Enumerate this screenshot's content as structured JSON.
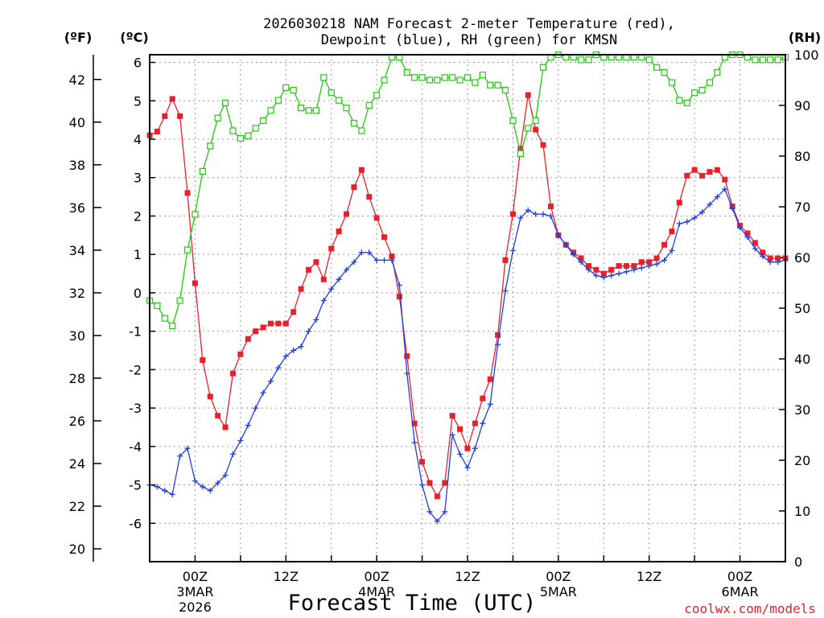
{
  "chart_data": {
    "type": "line",
    "title_line1": "2026030218 NAM Forecast 2-meter Temperature (red),",
    "title_line2": "Dewpoint (blue), RH (green) for KMSN",
    "xlabel": "Forecast Time (UTC)",
    "credit": "coolwx.com/models",
    "unit_labels": {
      "fahrenheit": "(ºF)",
      "celsius": "(ºC)",
      "rh": "(RH)"
    },
    "fahrenheit_axis": {
      "ticks": [
        "20",
        "22",
        "24",
        "26",
        "28",
        "30",
        "32",
        "34",
        "36",
        "38",
        "40",
        "42"
      ]
    },
    "celsius_axis": {
      "range": [
        -7,
        6.2
      ],
      "ticks": [
        "-6",
        "-5",
        "-4",
        "-3",
        "-2",
        "-1",
        "0",
        "1",
        "2",
        "3",
        "4",
        "5",
        "6"
      ]
    },
    "rh_axis": {
      "range": [
        0,
        100
      ],
      "ticks": [
        "0",
        "10",
        "20",
        "30",
        "40",
        "50",
        "60",
        "70",
        "80",
        "90",
        "100"
      ]
    },
    "time_axis": {
      "start_hour": -6,
      "end_hour": 78,
      "unit": "hours from 00Z 3MAR",
      "ticks": [
        {
          "hour": 0,
          "label": "00Z",
          "sub1": "3MAR",
          "sub2": "2026"
        },
        {
          "hour": 12,
          "label": "12Z",
          "sub1": "",
          "sub2": ""
        },
        {
          "hour": 24,
          "label": "00Z",
          "sub1": "4MAR",
          "sub2": ""
        },
        {
          "hour": 36,
          "label": "12Z",
          "sub1": "",
          "sub2": ""
        },
        {
          "hour": 48,
          "label": "00Z",
          "sub1": "5MAR",
          "sub2": ""
        },
        {
          "hour": 60,
          "label": "12Z",
          "sub1": "",
          "sub2": ""
        },
        {
          "hour": 72,
          "label": "00Z",
          "sub1": "6MAR",
          "sub2": ""
        }
      ]
    },
    "series": [
      {
        "name": "Temperature (°C)",
        "color": "#e8202a",
        "axis": "celsius",
        "marker": "square",
        "points": [
          [
            -6,
            4.1
          ],
          [
            -5,
            4.2
          ],
          [
            -4,
            4.6
          ],
          [
            -3,
            5.05
          ],
          [
            -2,
            4.6
          ],
          [
            -1,
            2.6
          ],
          [
            0,
            0.25
          ],
          [
            1,
            -1.75
          ],
          [
            2,
            -2.7
          ],
          [
            3,
            -3.2
          ],
          [
            4,
            -3.5
          ],
          [
            5,
            -2.1
          ],
          [
            6,
            -1.6
          ],
          [
            7,
            -1.2
          ],
          [
            8,
            -1.0
          ],
          [
            9,
            -0.9
          ],
          [
            10,
            -0.8
          ],
          [
            11,
            -0.8
          ],
          [
            12,
            -0.8
          ],
          [
            13,
            -0.5
          ],
          [
            14,
            0.1
          ],
          [
            15,
            0.6
          ],
          [
            16,
            0.8
          ],
          [
            17,
            0.35
          ],
          [
            18,
            1.15
          ],
          [
            19,
            1.6
          ],
          [
            20,
            2.05
          ],
          [
            21,
            2.75
          ],
          [
            22,
            3.2
          ],
          [
            23,
            2.5
          ],
          [
            24,
            1.95
          ],
          [
            25,
            1.45
          ],
          [
            26,
            0.95
          ],
          [
            27,
            -0.1
          ],
          [
            28,
            -1.65
          ],
          [
            29,
            -3.4
          ],
          [
            30,
            -4.4
          ],
          [
            31,
            -4.95
          ],
          [
            32,
            -5.3
          ],
          [
            33,
            -4.95
          ],
          [
            34,
            -3.2
          ],
          [
            35,
            -3.55
          ],
          [
            36,
            -4.05
          ],
          [
            37,
            -3.4
          ],
          [
            38,
            -2.75
          ],
          [
            39,
            -2.25
          ],
          [
            40,
            -1.1
          ],
          [
            41,
            0.85
          ],
          [
            42,
            2.05
          ],
          [
            43,
            3.75
          ],
          [
            44,
            5.15
          ],
          [
            45,
            4.25
          ],
          [
            46,
            3.85
          ],
          [
            47,
            2.25
          ],
          [
            48,
            1.5
          ],
          [
            49,
            1.25
          ],
          [
            50,
            1.05
          ],
          [
            51,
            0.9
          ],
          [
            52,
            0.7
          ],
          [
            53,
            0.6
          ],
          [
            54,
            0.5
          ],
          [
            55,
            0.6
          ],
          [
            56,
            0.7
          ],
          [
            57,
            0.7
          ],
          [
            58,
            0.7
          ],
          [
            59,
            0.8
          ],
          [
            60,
            0.8
          ],
          [
            61,
            0.9
          ],
          [
            62,
            1.25
          ],
          [
            63,
            1.6
          ],
          [
            64,
            2.35
          ],
          [
            65,
            3.05
          ],
          [
            66,
            3.2
          ],
          [
            67,
            3.05
          ],
          [
            68,
            3.15
          ],
          [
            69,
            3.2
          ],
          [
            70,
            2.95
          ],
          [
            71,
            2.25
          ],
          [
            72,
            1.75
          ],
          [
            73,
            1.55
          ],
          [
            74,
            1.3
          ],
          [
            75,
            1.05
          ],
          [
            76,
            0.9
          ],
          [
            77,
            0.9
          ],
          [
            78,
            0.9
          ]
        ]
      },
      {
        "name": "Dewpoint (°C)",
        "color": "#1f3fe0",
        "axis": "celsius",
        "marker": "plus",
        "points": [
          [
            -6,
            -5.0
          ],
          [
            -5,
            -5.05
          ],
          [
            -4,
            -5.15
          ],
          [
            -3,
            -5.25
          ],
          [
            -2,
            -4.25
          ],
          [
            -1,
            -4.05
          ],
          [
            0,
            -4.9
          ],
          [
            1,
            -5.05
          ],
          [
            2,
            -5.15
          ],
          [
            3,
            -4.95
          ],
          [
            4,
            -4.75
          ],
          [
            5,
            -4.2
          ],
          [
            6,
            -3.85
          ],
          [
            7,
            -3.45
          ],
          [
            8,
            -3.0
          ],
          [
            9,
            -2.6
          ],
          [
            10,
            -2.3
          ],
          [
            11,
            -1.95
          ],
          [
            12,
            -1.65
          ],
          [
            13,
            -1.5
          ],
          [
            14,
            -1.4
          ],
          [
            15,
            -1.0
          ],
          [
            16,
            -0.7
          ],
          [
            17,
            -0.2
          ],
          [
            18,
            0.1
          ],
          [
            19,
            0.35
          ],
          [
            20,
            0.6
          ],
          [
            21,
            0.8
          ],
          [
            22,
            1.05
          ],
          [
            23,
            1.05
          ],
          [
            24,
            0.85
          ],
          [
            25,
            0.85
          ],
          [
            26,
            0.85
          ],
          [
            27,
            0.2
          ],
          [
            28,
            -2.1
          ],
          [
            29,
            -3.9
          ],
          [
            30,
            -5.0
          ],
          [
            31,
            -5.7
          ],
          [
            32,
            -5.95
          ],
          [
            33,
            -5.7
          ],
          [
            34,
            -3.7
          ],
          [
            35,
            -4.2
          ],
          [
            36,
            -4.55
          ],
          [
            37,
            -4.05
          ],
          [
            38,
            -3.4
          ],
          [
            39,
            -2.9
          ],
          [
            40,
            -1.35
          ],
          [
            41,
            0.05
          ],
          [
            42,
            1.1
          ],
          [
            43,
            1.95
          ],
          [
            44,
            2.15
          ],
          [
            45,
            2.05
          ],
          [
            46,
            2.05
          ],
          [
            47,
            2.0
          ],
          [
            48,
            1.5
          ],
          [
            49,
            1.25
          ],
          [
            50,
            1.0
          ],
          [
            51,
            0.8
          ],
          [
            52,
            0.6
          ],
          [
            53,
            0.45
          ],
          [
            54,
            0.4
          ],
          [
            55,
            0.45
          ],
          [
            56,
            0.5
          ],
          [
            57,
            0.55
          ],
          [
            58,
            0.6
          ],
          [
            59,
            0.65
          ],
          [
            60,
            0.7
          ],
          [
            61,
            0.75
          ],
          [
            62,
            0.85
          ],
          [
            63,
            1.1
          ],
          [
            64,
            1.8
          ],
          [
            65,
            1.85
          ],
          [
            66,
            1.95
          ],
          [
            67,
            2.1
          ],
          [
            68,
            2.3
          ],
          [
            69,
            2.5
          ],
          [
            70,
            2.7
          ],
          [
            71,
            2.2
          ],
          [
            72,
            1.7
          ],
          [
            73,
            1.45
          ],
          [
            74,
            1.15
          ],
          [
            75,
            0.95
          ],
          [
            76,
            0.8
          ],
          [
            77,
            0.8
          ],
          [
            78,
            0.85
          ]
        ]
      },
      {
        "name": "Relative Humidity (%)",
        "color": "#22c90f",
        "axis": "rh",
        "marker": "open-square",
        "points": [
          [
            -6,
            51.5
          ],
          [
            -5,
            50.5
          ],
          [
            -4,
            48
          ],
          [
            -3,
            46.5
          ],
          [
            -2,
            51.5
          ],
          [
            -1,
            61.5
          ],
          [
            0,
            68.5
          ],
          [
            1,
            77
          ],
          [
            2,
            82
          ],
          [
            3,
            87.5
          ],
          [
            4,
            90.5
          ],
          [
            5,
            85
          ],
          [
            6,
            83.5
          ],
          [
            7,
            84
          ],
          [
            8,
            85.5
          ],
          [
            9,
            87
          ],
          [
            10,
            89
          ],
          [
            11,
            91
          ],
          [
            12,
            93.5
          ],
          [
            13,
            93
          ],
          [
            14,
            89.5
          ],
          [
            15,
            89
          ],
          [
            16,
            89
          ],
          [
            17,
            95.5
          ],
          [
            18,
            92.5
          ],
          [
            19,
            91
          ],
          [
            20,
            89.5
          ],
          [
            21,
            86.5
          ],
          [
            22,
            85
          ],
          [
            23,
            90
          ],
          [
            24,
            92
          ],
          [
            25,
            95
          ],
          [
            26,
            99.5
          ],
          [
            27,
            99.5
          ],
          [
            28,
            96.5
          ],
          [
            29,
            95.5
          ],
          [
            30,
            95.5
          ],
          [
            31,
            95
          ],
          [
            32,
            95
          ],
          [
            33,
            95.5
          ],
          [
            34,
            95.5
          ],
          [
            35,
            95
          ],
          [
            36,
            95.5
          ],
          [
            37,
            94.5
          ],
          [
            38,
            96
          ],
          [
            39,
            94
          ],
          [
            40,
            94
          ],
          [
            41,
            93
          ],
          [
            42,
            87
          ],
          [
            43,
            80.5
          ],
          [
            44,
            85.5
          ],
          [
            45,
            87
          ],
          [
            46,
            97.5
          ],
          [
            47,
            99.5
          ],
          [
            48,
            100
          ],
          [
            49,
            99.5
          ],
          [
            50,
            99.5
          ],
          [
            51,
            99
          ],
          [
            52,
            99
          ],
          [
            53,
            100
          ],
          [
            54,
            99.5
          ],
          [
            55,
            99.5
          ],
          [
            56,
            99.5
          ],
          [
            57,
            99.5
          ],
          [
            58,
            99.5
          ],
          [
            59,
            99.5
          ],
          [
            60,
            99
          ],
          [
            61,
            97.5
          ],
          [
            62,
            96.5
          ],
          [
            63,
            94.5
          ],
          [
            64,
            91
          ],
          [
            65,
            90.5
          ],
          [
            66,
            92.5
          ],
          [
            67,
            93
          ],
          [
            68,
            94.5
          ],
          [
            69,
            96.5
          ],
          [
            70,
            99.5
          ],
          [
            71,
            100
          ],
          [
            72,
            100
          ],
          [
            73,
            99.5
          ],
          [
            74,
            99
          ],
          [
            75,
            99
          ],
          [
            76,
            99
          ],
          [
            77,
            99
          ],
          [
            78,
            99.5
          ]
        ]
      }
    ]
  }
}
